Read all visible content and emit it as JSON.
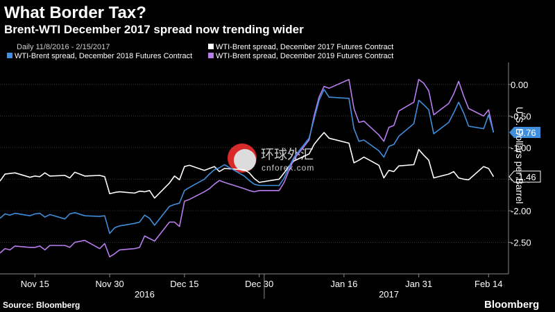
{
  "header": {
    "title": "What Border Tax?",
    "subtitle": "Brent-WTI December 2017 spread now trending wider"
  },
  "legend": {
    "date_range": "Daily 11/8/2016 - 2/15/2017"
  },
  "watermark": {
    "chinese_text": "环球外汇",
    "latin_text": "cnforex.com"
  },
  "footer": {
    "source": "Source: Bloomberg",
    "brand": "Bloomberg"
  },
  "colors": {
    "background": "#000000",
    "dec2017": "#ffffff",
    "dec2018": "#3f8fdc",
    "dec2019": "#b87ef0",
    "grid": "#3c3c3c"
  },
  "chart_data": {
    "type": "line",
    "title": "What Border Tax?",
    "subtitle": "Brent-WTI December 2017 spread now trending wider",
    "ylabel": "U.S. Dollars per Barrel",
    "ylim": [
      -3.0,
      0.35
    ],
    "yticks": [
      0.0,
      -0.5,
      -1.0,
      -1.5,
      -2.0,
      -2.5
    ],
    "ytick_labels": [
      "0.00",
      "-0.50",
      "-1.00",
      "-1.50",
      "-2.00",
      "-2.50"
    ],
    "xlim": [
      "2016-11-08",
      "2017-02-18"
    ],
    "x_tick_labels": [
      {
        "date": "2016-11-15",
        "label": "Nov 15"
      },
      {
        "date": "2016-11-30",
        "label": "Nov 30"
      },
      {
        "date": "2016-12-15",
        "label": "Dec 15"
      },
      {
        "date": "2016-12-30",
        "label": "Dec 30"
      },
      {
        "date": "2017-01-16",
        "label": "Jan 16"
      },
      {
        "date": "2017-01-31",
        "label": "Jan 31"
      },
      {
        "date": "2017-02-14",
        "label": "Feb 14"
      }
    ],
    "year_labels": [
      {
        "date": "2016-12-07",
        "label": "2016"
      },
      {
        "date": "2017-01-25",
        "label": "2017"
      }
    ],
    "year_divider_date": "2016-12-31",
    "grid": true,
    "legend_position": "top",
    "dates": [
      "2016-11-08",
      "2016-11-09",
      "2016-11-10",
      "2016-11-11",
      "2016-11-14",
      "2016-11-15",
      "2016-11-16",
      "2016-11-17",
      "2016-11-18",
      "2016-11-21",
      "2016-11-22",
      "2016-11-23",
      "2016-11-25",
      "2016-11-28",
      "2016-11-29",
      "2016-11-30",
      "2016-12-01",
      "2016-12-02",
      "2016-12-05",
      "2016-12-06",
      "2016-12-07",
      "2016-12-08",
      "2016-12-09",
      "2016-12-12",
      "2016-12-13",
      "2016-12-14",
      "2016-12-15",
      "2016-12-16",
      "2016-12-19",
      "2016-12-20",
      "2016-12-21",
      "2016-12-22",
      "2016-12-23",
      "2016-12-27",
      "2016-12-28",
      "2016-12-29",
      "2016-12-30",
      "2017-01-03",
      "2017-01-04",
      "2017-01-05",
      "2017-01-06",
      "2017-01-09",
      "2017-01-10",
      "2017-01-11",
      "2017-01-12",
      "2017-01-13",
      "2017-01-17",
      "2017-01-18",
      "2017-01-19",
      "2017-01-20",
      "2017-01-23",
      "2017-01-24",
      "2017-01-25",
      "2017-01-26",
      "2017-01-27",
      "2017-01-30",
      "2017-01-31",
      "2017-02-01",
      "2017-02-02",
      "2017-02-03",
      "2017-02-06",
      "2017-02-07",
      "2017-02-08",
      "2017-02-09",
      "2017-02-10",
      "2017-02-13",
      "2017-02-14",
      "2017-02-15"
    ],
    "series": [
      {
        "name": "WTI-Brent spread, December 2017 Futures Contract",
        "color": "#ffffff",
        "last_label": "-1.46",
        "values": [
          -1.53,
          -1.42,
          -1.41,
          -1.4,
          -1.47,
          -1.45,
          -1.46,
          -1.4,
          -1.45,
          -1.44,
          -1.48,
          -1.39,
          -1.45,
          -1.44,
          -1.46,
          -1.73,
          -1.71,
          -1.7,
          -1.72,
          -1.69,
          -1.7,
          -1.68,
          -1.8,
          -1.56,
          -1.45,
          -1.51,
          -1.3,
          -1.28,
          -1.36,
          -1.33,
          -1.3,
          -1.38,
          -1.33,
          -1.35,
          -1.4,
          -1.49,
          -1.55,
          -1.5,
          -1.4,
          -1.29,
          -1.21,
          -1.1,
          -0.95,
          -0.85,
          -0.76,
          -0.85,
          -0.93,
          -1.24,
          -1.2,
          -1.15,
          -1.28,
          -1.48,
          -1.36,
          -1.38,
          -1.29,
          -1.27,
          -1.03,
          -1.12,
          -1.2,
          -1.48,
          -1.42,
          -1.38,
          -1.48,
          -1.5,
          -1.51,
          -1.3,
          -1.33,
          -1.46
        ]
      },
      {
        "name": "WTI-Brent spread, December 2018 Futures Contract",
        "color": "#3f8fdc",
        "last_label": "-0.76",
        "values": [
          -2.12,
          -2.05,
          -2.07,
          -2.04,
          -2.08,
          -2.05,
          -2.04,
          -2.1,
          -2.06,
          -2.13,
          -2.05,
          -2.03,
          -2.08,
          -2.09,
          -2.08,
          -2.36,
          -2.27,
          -2.24,
          -2.2,
          -2.18,
          -2.07,
          -2.12,
          -2.23,
          -1.93,
          -1.9,
          -1.88,
          -1.68,
          -1.63,
          -1.5,
          -1.42,
          -1.35,
          -1.32,
          -1.27,
          -1.45,
          -1.52,
          -1.58,
          -1.6,
          -1.6,
          -1.48,
          -1.3,
          -1.15,
          -0.85,
          -0.55,
          -0.25,
          -0.08,
          -0.2,
          -0.22,
          -0.7,
          -0.9,
          -0.88,
          -1.05,
          -1.15,
          -0.98,
          -0.95,
          -0.82,
          -0.62,
          -0.25,
          -0.32,
          -0.4,
          -0.78,
          -0.6,
          -0.45,
          -0.28,
          -0.45,
          -0.66,
          -0.7,
          -0.48,
          -0.76
        ]
      },
      {
        "name": "WTI-Brent spread, December 2019 Futures Contract",
        "color": "#b87ef0",
        "last_label": "-0.76",
        "values": [
          -2.67,
          -2.6,
          -2.62,
          -2.56,
          -2.58,
          -2.58,
          -2.56,
          -2.62,
          -2.55,
          -2.55,
          -2.58,
          -2.5,
          -2.47,
          -2.6,
          -2.52,
          -2.73,
          -2.68,
          -2.62,
          -2.6,
          -2.58,
          -2.4,
          -2.44,
          -2.48,
          -2.18,
          -2.18,
          -2.25,
          -1.85,
          -1.82,
          -1.7,
          -1.65,
          -1.58,
          -1.52,
          -1.55,
          -1.65,
          -1.68,
          -1.7,
          -1.68,
          -1.68,
          -1.55,
          -1.35,
          -1.18,
          -0.88,
          -0.5,
          -0.2,
          -0.03,
          -0.06,
          0.08,
          -0.38,
          -0.6,
          -0.58,
          -0.8,
          -0.9,
          -0.68,
          -0.65,
          -0.42,
          -0.28,
          0.08,
          0.02,
          -0.1,
          -0.48,
          -0.3,
          -0.15,
          0.05,
          -0.18,
          -0.38,
          -0.5,
          -0.4,
          -0.76
        ]
      }
    ]
  }
}
